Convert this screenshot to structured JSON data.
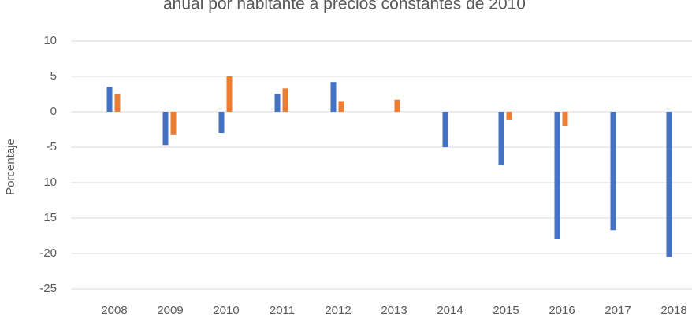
{
  "chart_data": {
    "type": "bar",
    "title": "anual por habitante a precios constantes de 2010",
    "y_label": "Porcentaje",
    "categories": [
      "2008",
      "2009",
      "2010",
      "2011",
      "2012",
      "2013",
      "2014",
      "2015",
      "2016",
      "2017",
      "2018"
    ],
    "series": [
      {
        "color": "#4472c4",
        "values": [
          3.5,
          -4.7,
          -3,
          2.5,
          4.2,
          null,
          -5,
          -7.5,
          -18,
          -16.7,
          -20.5
        ]
      },
      {
        "color": "#ed7d31",
        "values": [
          2.5,
          -3.2,
          5,
          3.3,
          1.5,
          1.7,
          null,
          -1.1,
          -2,
          null,
          null
        ]
      }
    ],
    "ylim": [
      -25,
      10
    ],
    "yticks": [
      -25,
      -20,
      {
        "value": -15,
        "label": "15"
      },
      {
        "value": -10,
        "label": "10"
      },
      -5,
      0,
      5,
      10
    ],
    "grid": true
  }
}
